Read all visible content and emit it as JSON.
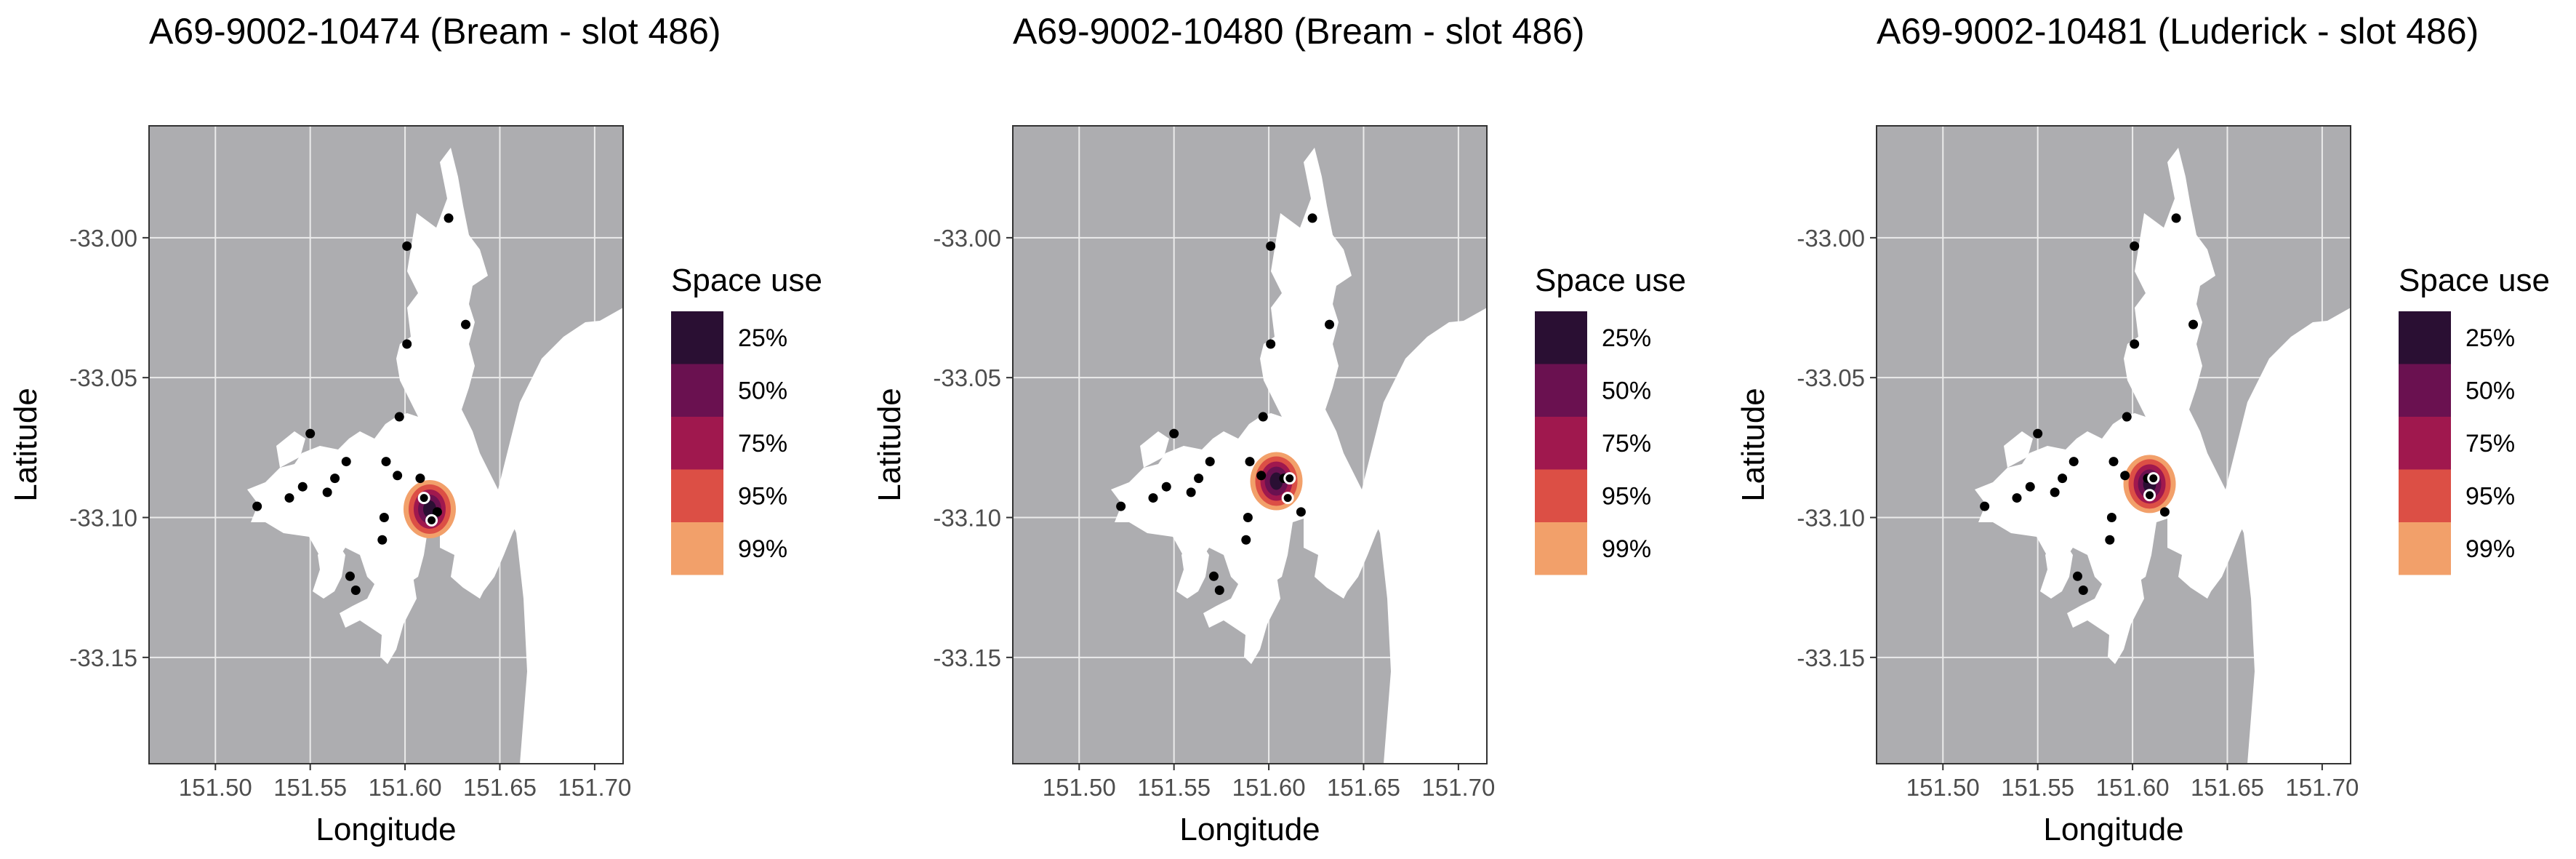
{
  "panels": [
    {
      "title": "A69-9002-10474 (Bream - slot 486)",
      "hotspot": {
        "lon": 151.613,
        "lat": -33.097
      },
      "detections": [
        [
          151.61,
          -33.093
        ],
        [
          151.614,
          -33.101
        ]
      ]
    },
    {
      "title": "A69-9002-10480 (Bream - slot 486)",
      "hotspot": {
        "lon": 151.604,
        "lat": -33.087
      },
      "detections": [
        [
          151.611,
          -33.086
        ],
        [
          151.61,
          -33.093
        ]
      ]
    },
    {
      "title": "A69-9002-10481 (Luderick - slot 486)",
      "hotspot": {
        "lon": 151.609,
        "lat": -33.088
      },
      "detections": [
        [
          151.611,
          -33.086
        ],
        [
          151.609,
          -33.092
        ]
      ]
    }
  ],
  "axes": {
    "xlabel": "Longitude",
    "ylabel": "Latitude",
    "xlim": [
      151.465,
      151.715
    ],
    "ylim": [
      -33.188,
      -32.96
    ],
    "xticks": [
      "151.50",
      "151.55",
      "151.60",
      "151.65",
      "151.70"
    ],
    "xtick_values": [
      151.5,
      151.55,
      151.6,
      151.65,
      151.7
    ],
    "yticks": [
      "-33.00",
      "-33.05",
      "-33.10",
      "-33.15"
    ],
    "ytick_values": [
      -33.0,
      -33.05,
      -33.1,
      -33.15
    ]
  },
  "legend": {
    "title": "Space use",
    "items": [
      {
        "label": "25%",
        "color": "#2a0f33"
      },
      {
        "label": "50%",
        "color": "#6a1150"
      },
      {
        "label": "75%",
        "color": "#a0184e"
      },
      {
        "label": "95%",
        "color": "#dc4f45"
      },
      {
        "label": "99%",
        "color": "#f2a06a"
      }
    ]
  },
  "receivers": [
    [
      151.623,
      -32.993
    ],
    [
      151.601,
      -33.003
    ],
    [
      151.632,
      -33.031
    ],
    [
      151.601,
      -33.038
    ],
    [
      151.597,
      -33.064
    ],
    [
      151.55,
      -33.07
    ],
    [
      151.59,
      -33.08
    ],
    [
      151.569,
      -33.08
    ],
    [
      151.596,
      -33.085
    ],
    [
      151.563,
      -33.086
    ],
    [
      151.608,
      -33.086
    ],
    [
      151.546,
      -33.089
    ],
    [
      151.559,
      -33.091
    ],
    [
      151.539,
      -33.093
    ],
    [
      151.522,
      -33.096
    ],
    [
      151.617,
      -33.098
    ],
    [
      151.589,
      -33.1
    ],
    [
      151.588,
      -33.108
    ],
    [
      151.571,
      -33.121
    ],
    [
      151.574,
      -33.126
    ]
  ],
  "colors": {
    "land": "#adadb0",
    "water": "#ffffff",
    "grid": "#ebebeb",
    "point": "#000000"
  }
}
